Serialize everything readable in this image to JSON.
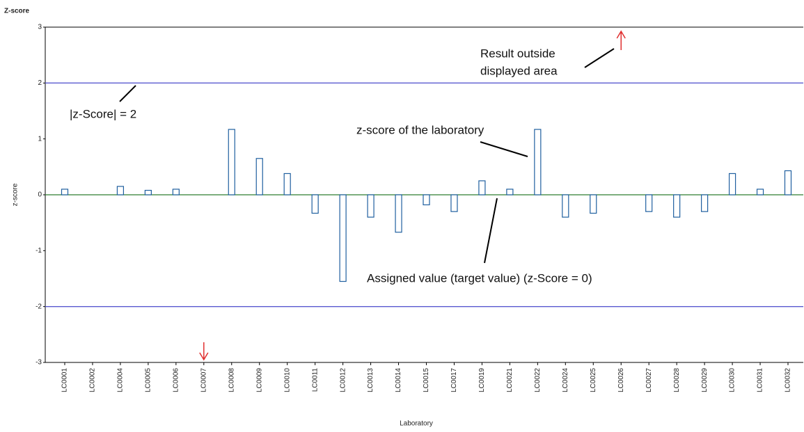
{
  "chart_data": {
    "type": "bar",
    "title": "Z-score",
    "y_label": "z-score",
    "x_label": "Laboratory",
    "categories": [
      "LC0001",
      "LC0002",
      "LC0004",
      "LC0005",
      "LC0006",
      "LC0007",
      "LC0008",
      "LC0009",
      "LC0010",
      "LC0011",
      "LC0012",
      "LC0013",
      "LC0014",
      "LC0015",
      "LC0017",
      "LC0019",
      "LC0021",
      "LC0022",
      "LC0024",
      "LC0025",
      "LC0026",
      "LC0027",
      "LC0028",
      "LC0029",
      "LC0030",
      "LC0031",
      "LC0032"
    ],
    "values": [
      0.1,
      null,
      0.15,
      0.08,
      0.1,
      null,
      1.17,
      0.65,
      0.38,
      -0.33,
      -1.55,
      -0.4,
      -0.67,
      -0.18,
      -0.3,
      0.25,
      0.1,
      1.17,
      -0.4,
      -0.33,
      null,
      -0.3,
      -0.4,
      -0.3,
      0.38,
      0.1,
      0.43
    ],
    "color": "#1f5f9f",
    "ylim": [
      -3,
      3
    ],
    "yticks": [
      -3,
      -2,
      -1,
      0,
      1,
      2,
      3
    ],
    "reference_lines": [
      {
        "value": 2,
        "color": "#5a5ad0"
      },
      {
        "value": -2,
        "color": "#5a5ad0"
      },
      {
        "value": 0,
        "color": "#2f7d32"
      }
    ],
    "outside_markers": [
      {
        "category": "LC0007",
        "direction": "down"
      },
      {
        "category": "LC0026",
        "direction": "up"
      }
    ],
    "outside_color": "#e03030",
    "annotations": [
      {
        "lines": [
          "Result outside",
          "displayed area"
        ]
      },
      {
        "lines": [
          "|z-Score| = 2"
        ]
      },
      {
        "lines": [
          "z-score of the laboratory"
        ]
      },
      {
        "lines": [
          "Assigned value (target value) (z-Score = 0)"
        ]
      }
    ]
  }
}
